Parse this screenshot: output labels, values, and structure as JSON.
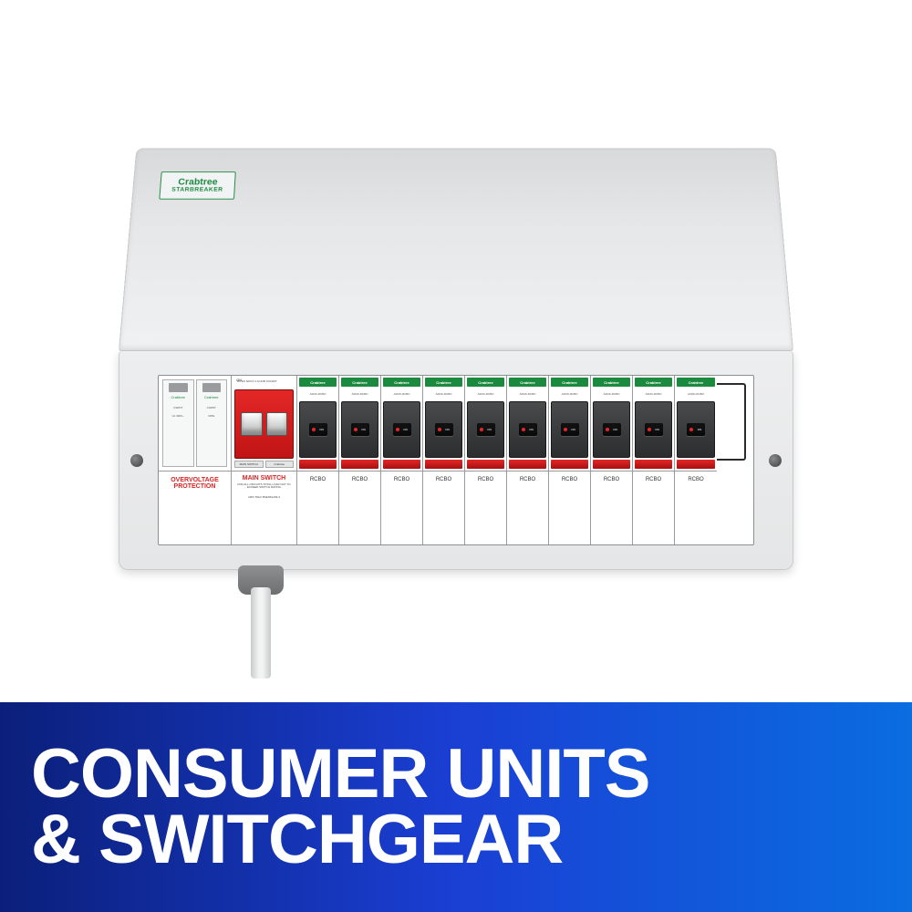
{
  "brand": {
    "line1": "Crabtree",
    "line2": "STARBREAKER"
  },
  "overvoltage": {
    "brand": "Crabtree",
    "mod1_line1": "CSPDT",
    "mod1_line2": "Uc 300V~",
    "mod2_line1": "CSPDT",
    "mod2_line2": "N/PE",
    "label": "OVERVOLTAGE PROTECTION"
  },
  "main": {
    "on": "ON",
    "spec": "BS EN 60947-3 AC22B 100/2MT",
    "foot1": "MAIN SWITCH",
    "foot2": "Crabtree",
    "title": "MAIN SWITCH",
    "sub": "FOR ALL CIRCUITS TOTAL LOAD NOT TO EXCEED SWITCH RATING",
    "rating": "230V 50Hz BSEN61439-3"
  },
  "rcbo": {
    "head": "Crabtree",
    "type": "AFDD-RCBO",
    "on": "ON",
    "label": "RCBO",
    "count": 10
  },
  "banner": {
    "line1": "CONSUMER UNITS",
    "line2": "& SWITCHGEAR"
  },
  "colors": {
    "green": "#1b8a3f",
    "red": "#e42727",
    "redText": "#d22",
    "bannerStart": "#0b1f7a",
    "bannerEnd": "#0a6de0"
  }
}
